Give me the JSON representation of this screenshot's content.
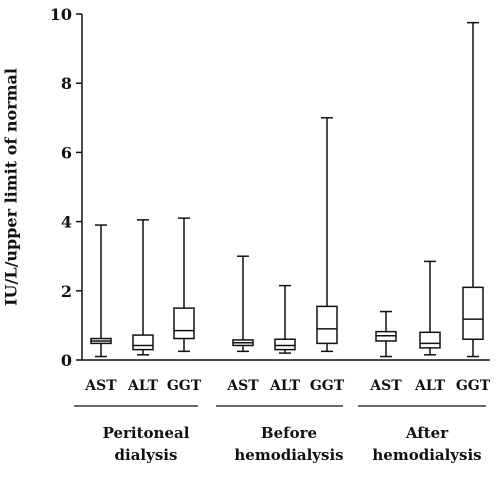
{
  "chart_data": {
    "type": "box",
    "ylabel": "IU/L/upper limit of normal",
    "ylim": [
      0,
      10
    ],
    "yticks": [
      "0",
      "2",
      "4",
      "6",
      "8",
      "10"
    ],
    "groups": [
      {
        "name_line1": "Peritoneal",
        "name_line2": "dialysis",
        "boxes": [
          {
            "label": "AST",
            "min": 0.1,
            "q1": 0.48,
            "median": 0.55,
            "q3": 0.62,
            "max": 3.9
          },
          {
            "label": "ALT",
            "min": 0.15,
            "q1": 0.3,
            "median": 0.42,
            "q3": 0.72,
            "max": 4.05
          },
          {
            "label": "GGT",
            "min": 0.25,
            "q1": 0.62,
            "median": 0.85,
            "q3": 1.5,
            "max": 4.1
          }
        ]
      },
      {
        "name_line1": "Before",
        "name_line2": "hemodialysis",
        "boxes": [
          {
            "label": "AST",
            "min": 0.25,
            "q1": 0.42,
            "median": 0.5,
            "q3": 0.58,
            "max": 3.0
          },
          {
            "label": "ALT",
            "min": 0.2,
            "q1": 0.3,
            "median": 0.42,
            "q3": 0.6,
            "max": 2.15
          },
          {
            "label": "GGT",
            "min": 0.25,
            "q1": 0.48,
            "median": 0.9,
            "q3": 1.55,
            "max": 7.0
          }
        ]
      },
      {
        "name_line1": "After",
        "name_line2": "hemodialysis",
        "boxes": [
          {
            "label": "AST",
            "min": 0.1,
            "q1": 0.55,
            "median": 0.7,
            "q3": 0.82,
            "max": 1.4
          },
          {
            "label": "ALT",
            "min": 0.15,
            "q1": 0.35,
            "median": 0.48,
            "q3": 0.8,
            "max": 2.85
          },
          {
            "label": "GGT",
            "min": 0.1,
            "q1": 0.6,
            "median": 1.18,
            "q3": 2.1,
            "max": 9.75
          }
        ]
      }
    ]
  }
}
